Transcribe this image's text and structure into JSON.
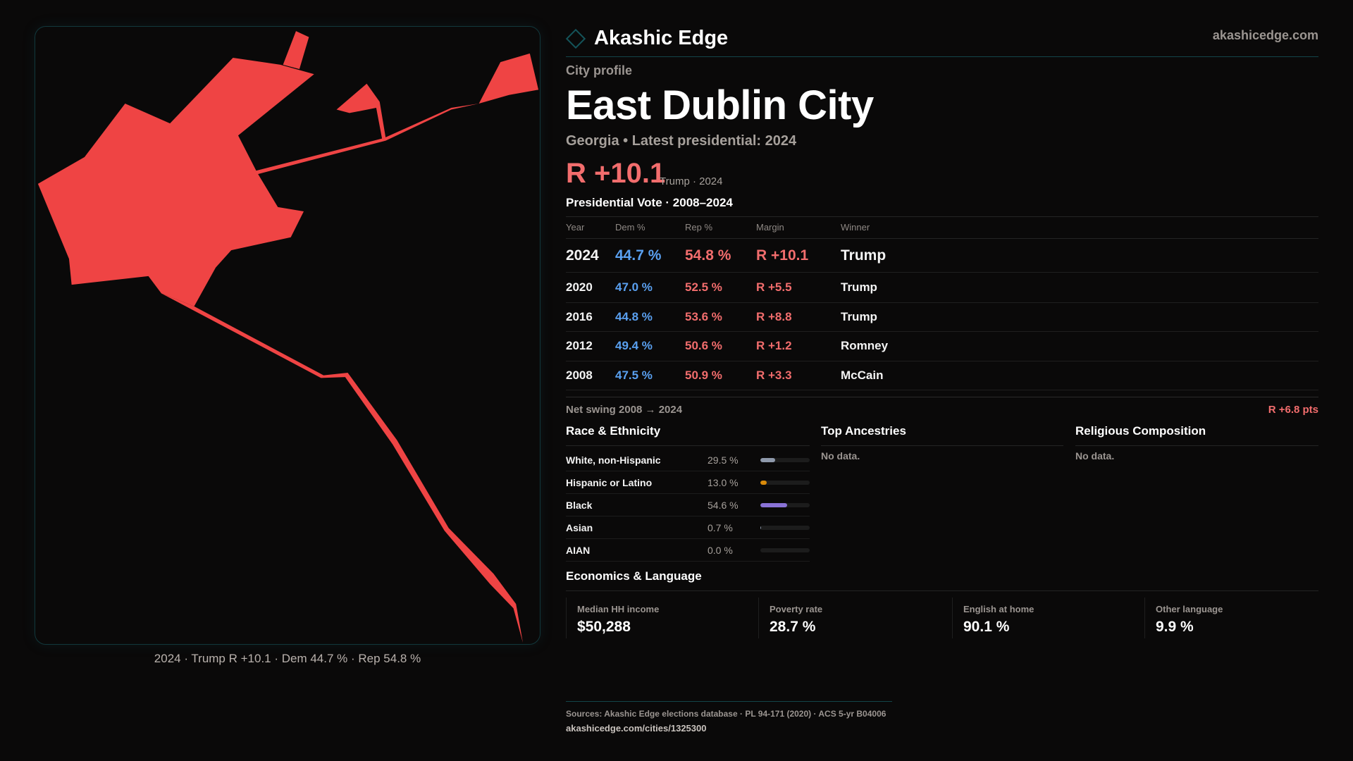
{
  "brand": {
    "name": "Akashic Edge",
    "site": "akashicedge.com"
  },
  "header": {
    "kicker": "City profile",
    "title": "East Dublin City",
    "subtitle": "Georgia • Latest presidential: 2024"
  },
  "headline": {
    "margin": "R +10.1",
    "note": "Trump · 2024"
  },
  "colors": {
    "rep": "#ef4444",
    "dem": "#5aa0f0",
    "accent": "#14545a"
  },
  "map": {
    "caption": "2024 · Trump  R +10.1 · Dem 44.7 % · Rep 54.8 %"
  },
  "votes": {
    "title": "Presidential Vote · 2008–2024",
    "headers": [
      "Year",
      "Dem %",
      "Rep %",
      "Margin",
      "Winner"
    ],
    "rows": [
      {
        "year": "2024",
        "dem": "44.7 %",
        "rep": "54.8 %",
        "margin": "R +10.1",
        "winner": "Trump"
      },
      {
        "year": "2020",
        "dem": "47.0 %",
        "rep": "52.5 %",
        "margin": "R +5.5",
        "winner": "Trump"
      },
      {
        "year": "2016",
        "dem": "44.8 %",
        "rep": "53.6 %",
        "margin": "R +8.8",
        "winner": "Trump"
      },
      {
        "year": "2012",
        "dem": "49.4 %",
        "rep": "50.6 %",
        "margin": "R +1.2",
        "winner": "Romney"
      },
      {
        "year": "2008",
        "dem": "47.5 %",
        "rep": "50.9 %",
        "margin": "R +3.3",
        "winner": "McCain"
      }
    ],
    "swing_label": "Net swing 2008 → 2024",
    "swing_value": "R +6.8 pts"
  },
  "race": {
    "title": "Race & Ethnicity",
    "rows": [
      {
        "label": "White, non-Hispanic",
        "value": "29.5 %",
        "pct": 29.5,
        "color": "#8e99ab"
      },
      {
        "label": "Hispanic or Latino",
        "value": "13.0 %",
        "pct": 13.0,
        "color": "#d98a0a"
      },
      {
        "label": "Black",
        "value": "54.6 %",
        "pct": 54.6,
        "color": "#8a72d6"
      },
      {
        "label": "Asian",
        "value": "0.7 %",
        "pct": 0.7,
        "color": "#8e99ab"
      },
      {
        "label": "AIAN",
        "value": "0.0 %",
        "pct": 0.0,
        "color": "#8e99ab"
      }
    ]
  },
  "ancestry": {
    "title": "Top Ancestries",
    "empty": "No data."
  },
  "religion": {
    "title": "Religious Composition",
    "empty": "No data."
  },
  "econ": {
    "title": "Economics & Language",
    "stats": [
      {
        "label": "Median HH income",
        "value": "$50,288"
      },
      {
        "label": "Poverty rate",
        "value": "28.7 %"
      },
      {
        "label": "English at home",
        "value": "90.1 %"
      },
      {
        "label": "Other language",
        "value": "9.9 %"
      }
    ]
  },
  "footer": {
    "sources": "Sources: Akashic Edge elections database · PL 94-171 (2020) · ACS 5-yr B04006",
    "link": "akashicedge.com/cities/1325300"
  }
}
